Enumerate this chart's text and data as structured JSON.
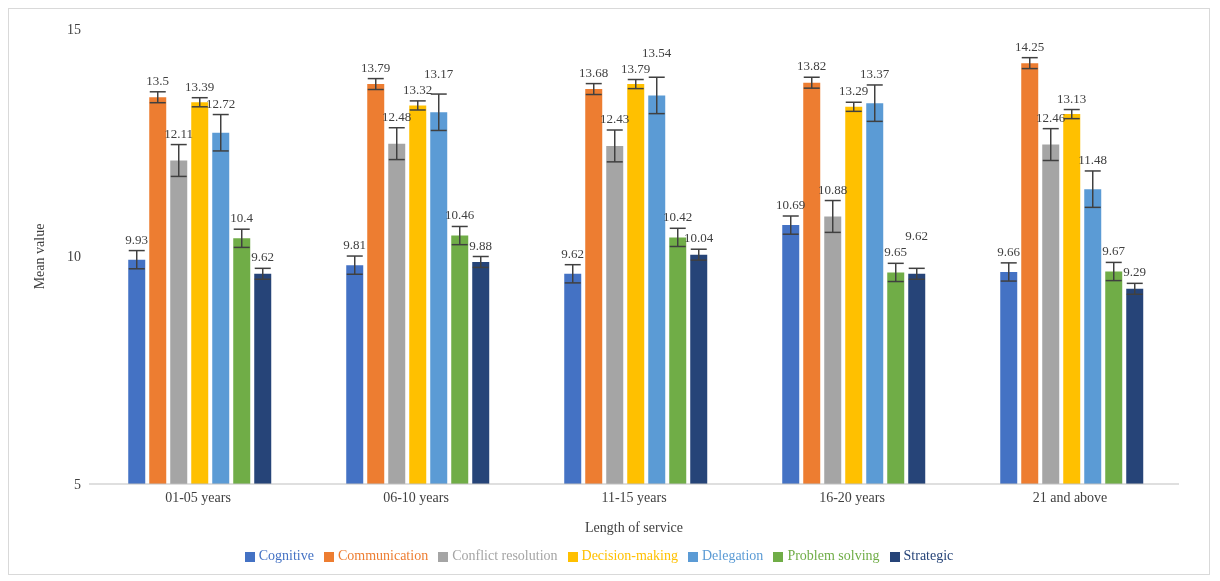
{
  "chart_data": {
    "type": "bar",
    "xlabel": "Length of service",
    "ylabel": "Mean value",
    "categories": [
      "01-05 years",
      "06-10 years",
      "11-15 years",
      "16-20 years",
      "21 and above"
    ],
    "series": [
      {
        "name": "Cognitive",
        "color": "#4472c4",
        "values": [
          9.93,
          9.81,
          9.62,
          10.69,
          9.66
        ],
        "errors": [
          0.2,
          0.2,
          0.2,
          0.2,
          0.2
        ]
      },
      {
        "name": "Communication",
        "color": "#ed7d31",
        "values": [
          13.5,
          13.79,
          13.68,
          13.82,
          14.25
        ],
        "errors": [
          0.12,
          0.12,
          0.12,
          0.12,
          0.12
        ]
      },
      {
        "name": "Conflict resolution",
        "color": "#a5a5a5",
        "values": [
          12.11,
          12.48,
          12.43,
          10.88,
          12.46
        ],
        "errors": [
          0.35,
          0.35,
          0.35,
          0.35,
          0.35
        ]
      },
      {
        "name": "Decision-making",
        "color": "#ffc000",
        "values": [
          13.39,
          13.32,
          13.79,
          13.29,
          13.13
        ],
        "errors": [
          0.1,
          0.1,
          0.1,
          0.1,
          0.1
        ]
      },
      {
        "name": "Delegation",
        "color": "#5b9bd5",
        "values": [
          12.72,
          13.17,
          13.54,
          13.37,
          11.48
        ],
        "errors": [
          0.4,
          0.4,
          0.4,
          0.4,
          0.4
        ]
      },
      {
        "name": "Problem solving",
        "color": "#70ad47",
        "values": [
          10.4,
          10.46,
          10.42,
          9.65,
          9.67
        ],
        "errors": [
          0.2,
          0.2,
          0.2,
          0.2,
          0.2
        ]
      },
      {
        "name": "Strategic",
        "color": "#264478",
        "values": [
          9.62,
          9.88,
          10.04,
          9.62,
          9.29
        ],
        "errors": [
          0.12,
          0.12,
          0.12,
          0.12,
          0.12
        ]
      }
    ],
    "ylim": [
      5,
      15
    ],
    "yticks": [
      5,
      10,
      15
    ],
    "grid": false,
    "legend": "bottom",
    "data_labels": true
  }
}
